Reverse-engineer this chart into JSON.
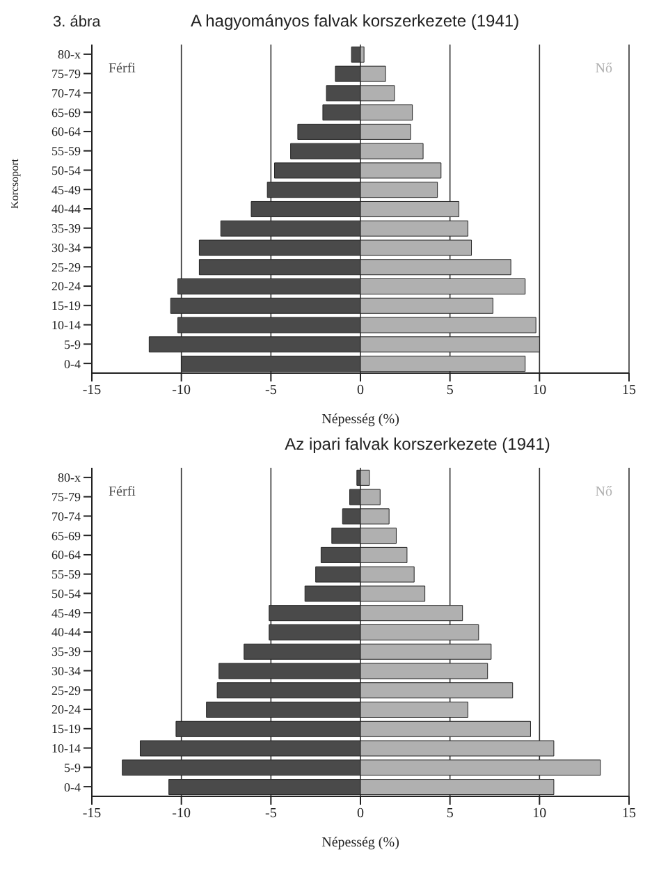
{
  "chart_data": [
    {
      "type": "bar",
      "orientation": "horizontal",
      "stacked": true,
      "title": "A hagyományos falvak korszerkezete (1941)",
      "annotations": [
        "3. ábra"
      ],
      "xlabel": "Népesség (%)",
      "ylabel": "Korcsoport",
      "categories": [
        "80-x",
        "75-79",
        "70-74",
        "65-69",
        "60-64",
        "55-59",
        "50-54",
        "45-49",
        "40-44",
        "35-39",
        "30-34",
        "25-29",
        "20-24",
        "15-19",
        "10-14",
        "5-9",
        "0-4"
      ],
      "series": [
        {
          "name": "Férfi",
          "color": "#4a4a4a",
          "values": [
            -0.5,
            -1.4,
            -1.9,
            -2.1,
            -3.5,
            -3.9,
            -4.8,
            -5.2,
            -6.1,
            -7.8,
            -9.0,
            -9.0,
            -10.2,
            -10.6,
            -10.2,
            -11.8,
            -10.0
          ]
        },
        {
          "name": "Nő",
          "color": "#b0b0b0",
          "values": [
            0.2,
            1.4,
            1.9,
            2.9,
            2.8,
            3.5,
            4.5,
            4.3,
            5.5,
            6.0,
            6.2,
            8.4,
            9.2,
            7.4,
            9.8,
            10.0,
            9.2
          ]
        }
      ],
      "xlim": [
        -15,
        15
      ],
      "xticks": [
        -15,
        -10,
        -5,
        0,
        5,
        10,
        15
      ],
      "grid": "x"
    },
    {
      "type": "bar",
      "orientation": "horizontal",
      "stacked": true,
      "title": "Az ipari falvak korszerkezete (1941)",
      "xlabel": "Népesség (%)",
      "categories": [
        "80-x",
        "75-79",
        "70-74",
        "65-69",
        "60-64",
        "55-59",
        "50-54",
        "45-49",
        "40-44",
        "35-39",
        "30-34",
        "25-29",
        "20-24",
        "15-19",
        "10-14",
        "5-9",
        "0-4"
      ],
      "series": [
        {
          "name": "Férfi",
          "color": "#4a4a4a",
          "values": [
            -0.2,
            -0.6,
            -1.0,
            -1.6,
            -2.2,
            -2.5,
            -3.1,
            -5.1,
            -5.1,
            -6.5,
            -7.9,
            -8.0,
            -8.6,
            -10.3,
            -12.3,
            -13.3,
            -10.7
          ]
        },
        {
          "name": "Nő",
          "color": "#b0b0b0",
          "values": [
            0.5,
            1.1,
            1.6,
            2.0,
            2.6,
            3.0,
            3.6,
            5.7,
            6.6,
            7.3,
            7.1,
            8.5,
            6.0,
            9.5,
            10.8,
            13.4,
            10.8
          ]
        }
      ],
      "xlim": [
        -15,
        15
      ],
      "xticks": [
        -15,
        -10,
        -5,
        0,
        5,
        10,
        15
      ],
      "grid": "x"
    }
  ]
}
